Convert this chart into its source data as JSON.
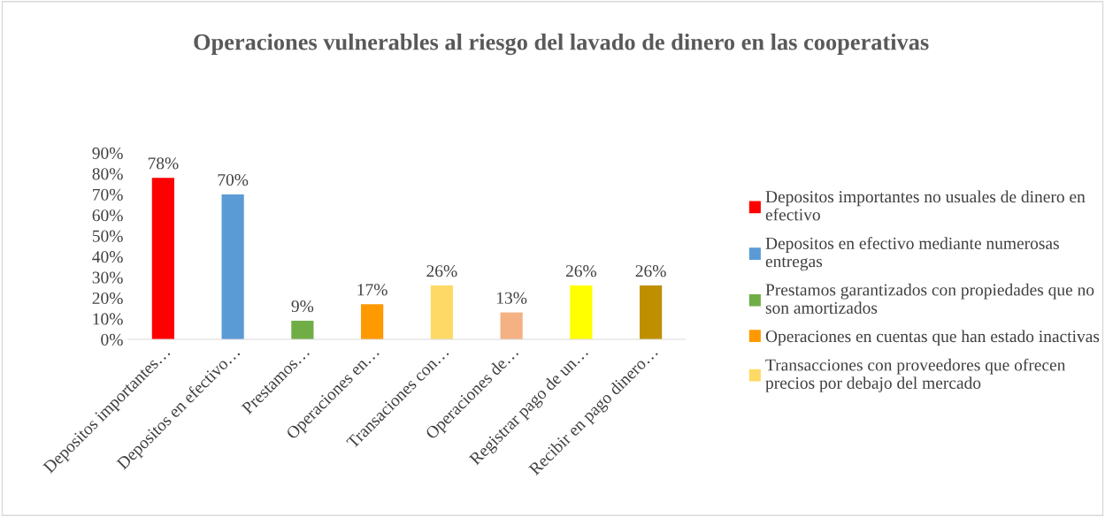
{
  "chart_data": {
    "type": "bar",
    "title": "Operaciones vulnerables al riesgo del lavado de dinero en las cooperativas",
    "categories": [
      "Depositos importantes…",
      "Depositos en efectivo…",
      "Prestamos…",
      "Operaciones en…",
      "Transaciones con…",
      "Operaciones de…",
      "Registrar pago de un…",
      "Recibir en pago dinero…"
    ],
    "series": [
      {
        "name": "Depositos importantes no usuales de dinero en efectivo",
        "color": "#ff0000",
        "values": [
          78,
          null,
          null,
          null,
          null,
          null,
          null,
          null
        ]
      },
      {
        "name": "Depositos en efectivo mediante numerosas entregas",
        "color": "#5b9bd5",
        "values": [
          null,
          70,
          null,
          null,
          null,
          null,
          null,
          null
        ]
      },
      {
        "name": "Prestamos garantizados con propiedades que no son amortizados",
        "color": "#70ad47",
        "values": [
          null,
          null,
          9,
          null,
          null,
          null,
          null,
          null
        ]
      },
      {
        "name": "Operaciones en cuentas que han estado inactivas",
        "color": "#ff9900",
        "values": [
          null,
          null,
          null,
          17,
          null,
          null,
          null,
          null
        ]
      },
      {
        "name": "Transacciones con proveedores que ofrecen precios por debajo del mercado",
        "color": "#ffd966",
        "values": [
          null,
          null,
          null,
          null,
          26,
          null,
          null,
          null
        ]
      },
      {
        "color": "#f4b183",
        "values": [
          null,
          null,
          null,
          null,
          null,
          13,
          null,
          null
        ]
      },
      {
        "color": "#ffff00",
        "values": [
          null,
          null,
          null,
          null,
          null,
          null,
          26,
          null
        ]
      },
      {
        "color": "#bf8f00",
        "values": [
          null,
          null,
          null,
          null,
          null,
          null,
          null,
          26
        ]
      }
    ],
    "ylim": [
      0,
      90
    ],
    "yticks": [
      {
        "value": 0,
        "label": "0%"
      },
      {
        "value": 10,
        "label": "10%"
      },
      {
        "value": 20,
        "label": "20%"
      },
      {
        "value": 30,
        "label": "30%"
      },
      {
        "value": 40,
        "label": "40%"
      },
      {
        "value": 50,
        "label": "50%"
      },
      {
        "value": 60,
        "label": "60%"
      },
      {
        "value": 70,
        "label": "70%"
      },
      {
        "value": 80,
        "label": "80%"
      },
      {
        "value": 90,
        "label": "90%"
      }
    ],
    "value_labels": [
      "78%",
      "70%",
      "9%",
      "17%",
      "26%",
      "13%",
      "26%",
      "26%"
    ],
    "grid": false,
    "legend": "right"
  }
}
